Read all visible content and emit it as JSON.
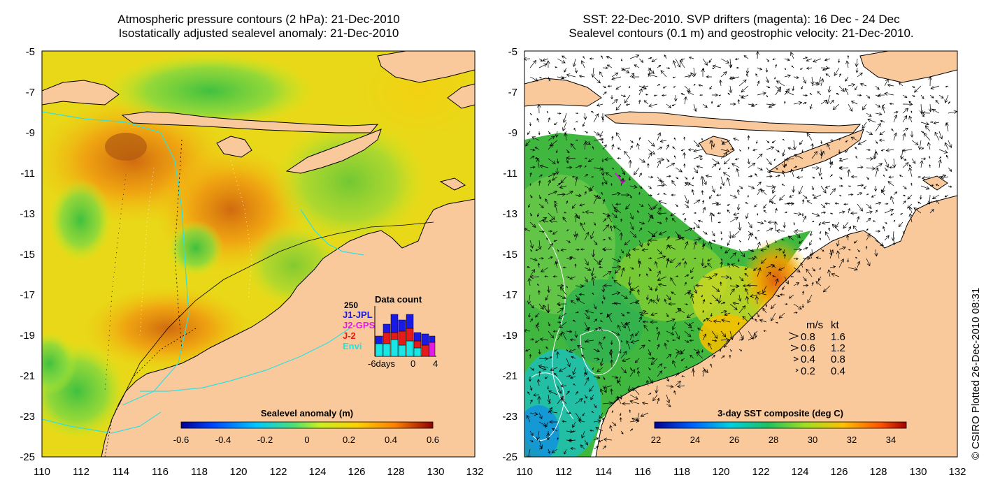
{
  "left_panel": {
    "title_line1": "Atmospheric pressure contours (2 hPa): 21-Dec-2010",
    "title_line2": "Isostatically adjusted sealevel anomaly: 21-Dec-2010",
    "y_ticks": [
      "-5",
      "-7",
      "-9",
      "-11",
      "-13",
      "-15",
      "-17",
      "-19",
      "-21",
      "-23",
      "-25"
    ],
    "x_ticks": [
      "110",
      "112",
      "114",
      "116",
      "118",
      "120",
      "122",
      "124",
      "126",
      "128",
      "130",
      "132"
    ],
    "colorbar": {
      "label": "Sealevel anomaly (m)",
      "ticks": [
        "-0.6",
        "-0.4",
        "-0.2",
        "0",
        "0.2",
        "0.4",
        "0.6"
      ]
    },
    "data_count": {
      "title": "Data count",
      "max_label": "250",
      "missions": [
        {
          "name": "J1-JPL",
          "color": "#1a1ae6"
        },
        {
          "name": "J2-GPS",
          "color": "#e619e6"
        },
        {
          "name": "J-2",
          "color": "#e61a1a"
        },
        {
          "name": "Envi",
          "color": "#19e6e6"
        }
      ],
      "x_labels": [
        "-6days",
        "0",
        "4"
      ]
    }
  },
  "right_panel": {
    "title_line1": "SST: 22-Dec-2010. SVP drifters (magenta): 16 Dec - 24 Dec",
    "title_line2": "Sealevel contours (0.1 m) and geostrophic velocity: 21-Dec-2010.",
    "y_ticks": [
      "-5",
      "-7",
      "-9",
      "-11",
      "-13",
      "-15",
      "-17",
      "-19",
      "-21",
      "-23",
      "-25"
    ],
    "x_ticks": [
      "110",
      "112",
      "114",
      "116",
      "118",
      "120",
      "122",
      "124",
      "126",
      "128",
      "130",
      "132"
    ],
    "colorbar": {
      "label": "3-day SST composite (deg C)",
      "ticks": [
        "22",
        "24",
        "26",
        "28",
        "30",
        "32",
        "34"
      ]
    },
    "velocity_legend": {
      "header_ms": "m/s",
      "header_kt": "kt",
      "rows": [
        {
          "ms": "0.8",
          "kt": "1.6"
        },
        {
          "ms": "0.6",
          "kt": "1.2"
        },
        {
          "ms": "0.4",
          "kt": "0.8"
        },
        {
          "ms": "0.2",
          "kt": "0.4"
        }
      ]
    }
  },
  "credit": "© CSIRO Plotted 26-Dec-2010 08:31",
  "colors": {
    "land": "#f9c99c",
    "contour_cyan": "#33dede",
    "drifter_magenta": "#d010d0"
  }
}
